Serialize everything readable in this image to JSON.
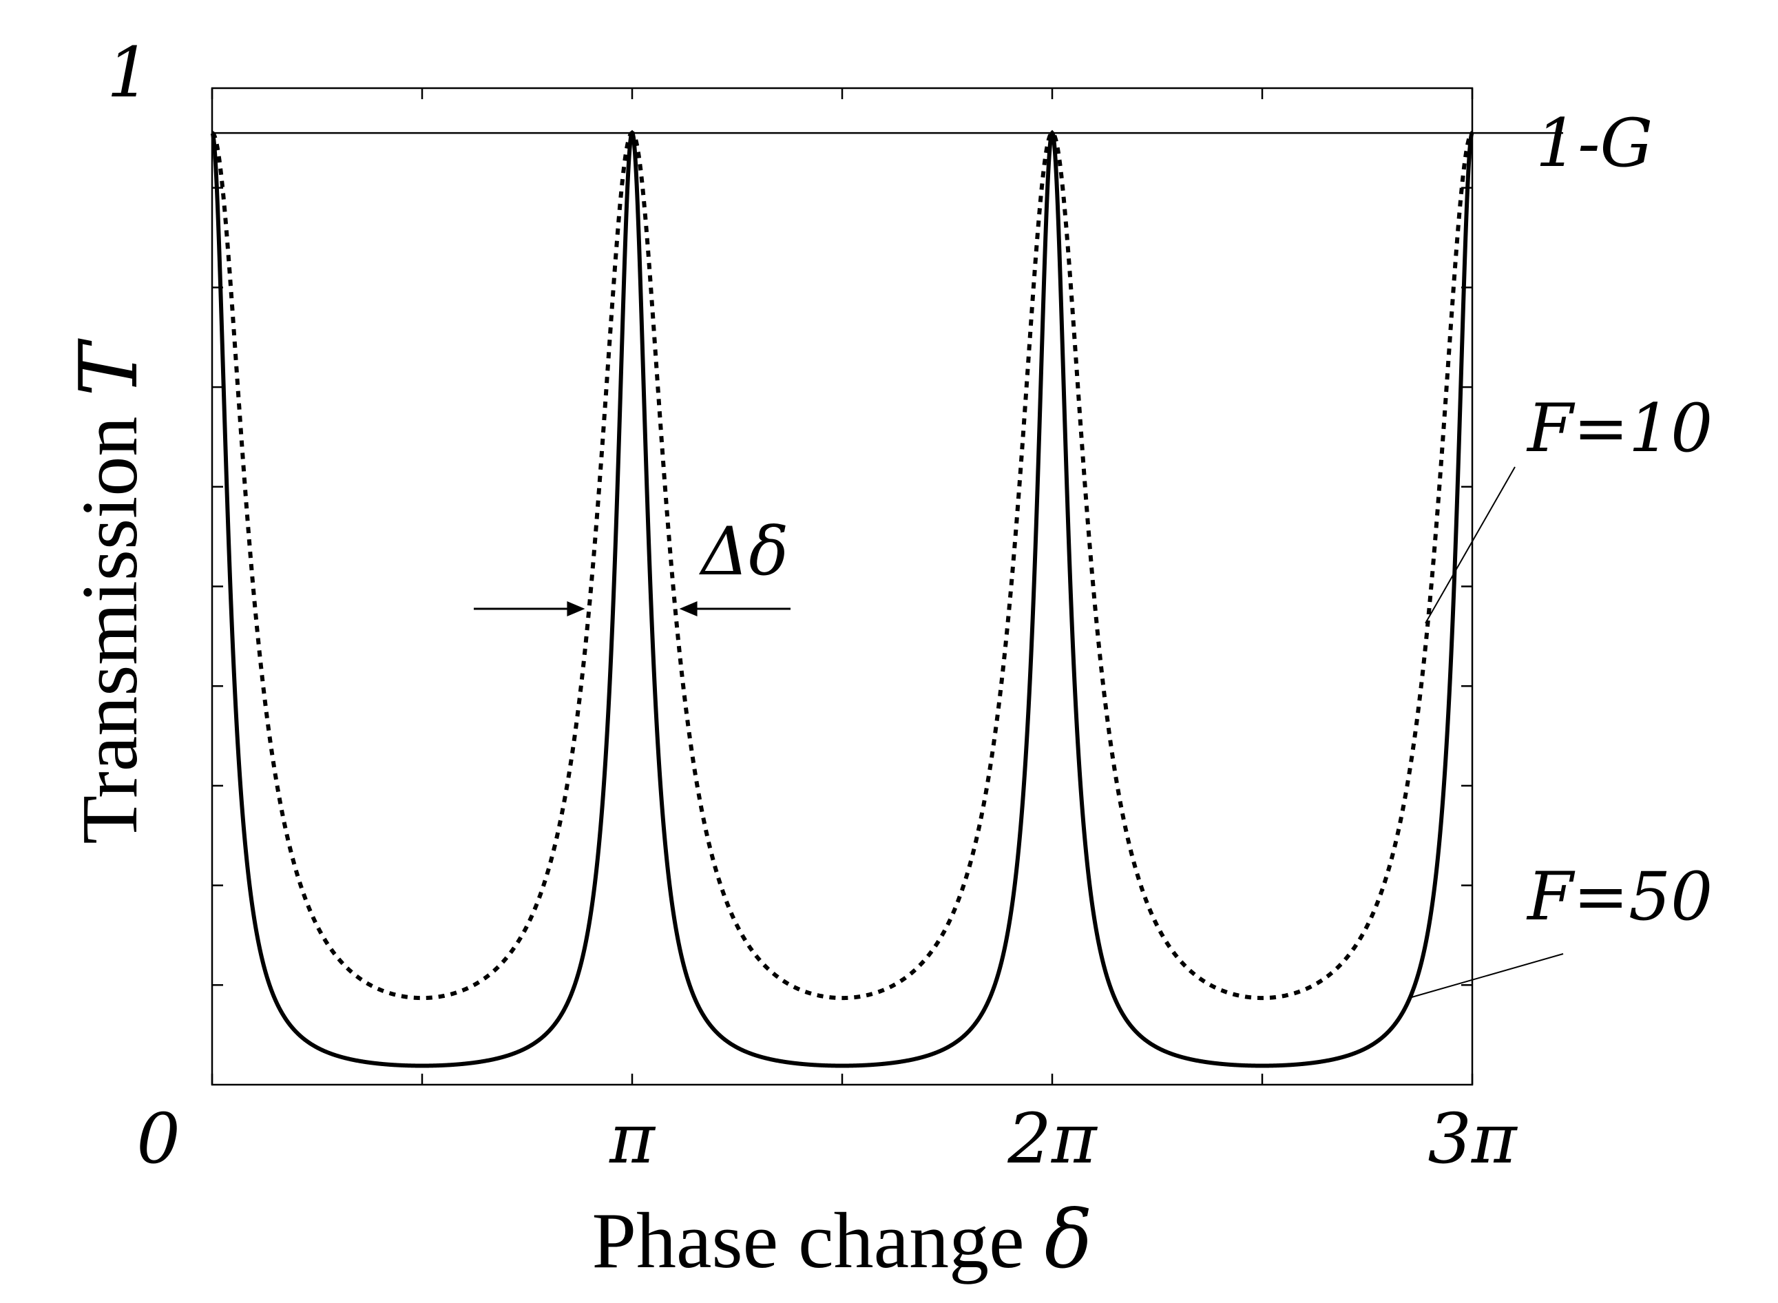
{
  "chart_data": {
    "type": "line",
    "title": "",
    "xlabel": {
      "text": "Phase change ",
      "symbol": "δ"
    },
    "ylabel": {
      "text": "Transmission ",
      "symbol": "T"
    },
    "xlim": [
      0,
      3
    ],
    "x_unit": "π",
    "ylim": [
      0,
      1
    ],
    "x_ticks": [
      {
        "value": 0,
        "label": "0"
      },
      {
        "value": 1,
        "label": "π"
      },
      {
        "value": 2,
        "label": "2π"
      },
      {
        "value": 3,
        "label": "3π"
      }
    ],
    "y_ticks": [
      {
        "value": 1,
        "label": "1"
      }
    ],
    "reference_line": {
      "y": 0.955,
      "label": "1-G"
    },
    "grid": false,
    "series": [
      {
        "name": "F=10",
        "style": "dotted",
        "color": "#000000",
        "peak": 0.955,
        "minimum": 0.087,
        "peaks_at": [
          0,
          1,
          2,
          3
        ]
      },
      {
        "name": "F=50",
        "style": "solid",
        "color": "#000000",
        "peak": 0.955,
        "minimum": 0.019,
        "peaks_at": [
          0,
          1,
          2,
          3
        ]
      }
    ],
    "annotations": [
      {
        "text": "Δδ",
        "meaning": "full width at half maximum of the F=10 peak at π"
      }
    ]
  }
}
